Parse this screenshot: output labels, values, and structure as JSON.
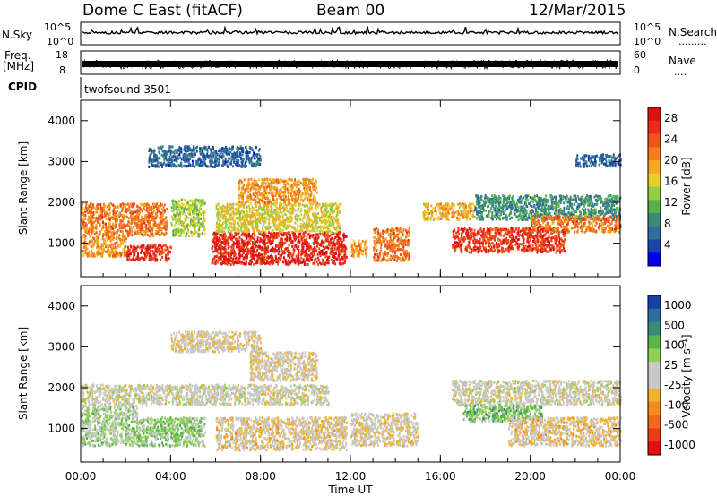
{
  "header": {
    "station": "Dome C East (fitACF)",
    "beam": "Beam 00",
    "date": "12/Mar/2015"
  },
  "strips": {
    "nsky_label": "N.Sky",
    "nsky_ticks": [
      "10^5",
      "10^0"
    ],
    "nsearch_label": "N.Search",
    "nsearch_dots": ".........",
    "nsearch_ticks": [
      "10^5",
      "10^0"
    ],
    "freq_label_line1": "Freq.",
    "freq_label_line2": "[MHz]",
    "freq_ticks": [
      "18",
      "8"
    ],
    "nave_label": "Nave",
    "nave_dots": "....",
    "nave_ticks": [
      "60",
      "0"
    ],
    "cpid_label": "CPID",
    "cpid_text": "twofsound 3501"
  },
  "colors": {
    "power": [
      "#0000ee",
      "#1a46a8",
      "#2e6d9c",
      "#3d8a7a",
      "#59b14c",
      "#96cd45",
      "#e8cf2d",
      "#f5a623",
      "#f47e1b",
      "#ef5519",
      "#e52d18",
      "#dc0f12"
    ],
    "velocity": [
      "#1a3fa8",
      "#2d6ea0",
      "#3a8c78",
      "#58b54a",
      "#8fd054",
      "#c8c8c8",
      "#c8c8c8",
      "#f0b22a",
      "#f58a1f",
      "#f06a1a",
      "#e83d17",
      "#e01010"
    ]
  },
  "chart_data": [
    {
      "type": "heatmap",
      "title": "",
      "ylabel": "Slant Range [km]",
      "xlabel": "",
      "xlim": [
        "00:00",
        "24:00"
      ],
      "ylim": [
        180,
        4500
      ],
      "yticks": [
        "4000",
        "3000",
        "2000",
        "1000"
      ],
      "colorbar_label": "Power [dB]",
      "colorbar_ticks": [
        "28",
        "24",
        "20",
        "16",
        "12",
        "8",
        "4"
      ],
      "colorbar_range": [
        0,
        30
      ],
      "scatter_regions": [
        {
          "t": [
            0.0,
            3.8
          ],
          "r": [
            1200,
            2000
          ],
          "v": 22
        },
        {
          "t": [
            0.0,
            2.0
          ],
          "r": [
            700,
            1200
          ],
          "v": 20
        },
        {
          "t": [
            2.0,
            4.0
          ],
          "r": [
            600,
            1000
          ],
          "v": 26
        },
        {
          "t": [
            4.0,
            5.5
          ],
          "r": [
            1200,
            2100
          ],
          "v": 14
        },
        {
          "t": [
            5.8,
            11.8
          ],
          "r": [
            500,
            1300
          ],
          "v": 27
        },
        {
          "t": [
            6.0,
            11.5
          ],
          "r": [
            1300,
            2000
          ],
          "v": 16
        },
        {
          "t": [
            7.0,
            10.5
          ],
          "r": [
            2000,
            2600
          ],
          "v": 20
        },
        {
          "t": [
            12.0,
            12.7
          ],
          "r": [
            700,
            1100
          ],
          "v": 20
        },
        {
          "t": [
            13.0,
            14.6
          ],
          "r": [
            600,
            1400
          ],
          "v": 22
        },
        {
          "t": [
            15.2,
            17.5
          ],
          "r": [
            1600,
            2000
          ],
          "v": 18
        },
        {
          "t": [
            16.5,
            21.5
          ],
          "r": [
            800,
            1400
          ],
          "v": 26
        },
        {
          "t": [
            17.5,
            24.0
          ],
          "r": [
            1600,
            2200
          ],
          "v": 9
        },
        {
          "t": [
            20.0,
            24.0
          ],
          "r": [
            1300,
            1700
          ],
          "v": 22
        },
        {
          "t": [
            3.0,
            8.0
          ],
          "r": [
            2900,
            3400
          ],
          "v": 6
        },
        {
          "t": [
            22.0,
            24.0
          ],
          "r": [
            2900,
            3200
          ],
          "v": 6
        }
      ]
    },
    {
      "type": "heatmap",
      "title": "",
      "ylabel": "Slant Range [km]",
      "xlabel": "Time UT",
      "xlim": [
        "00:00",
        "24:00"
      ],
      "ylim": [
        180,
        4500
      ],
      "xticks": [
        "00:00",
        "04:00",
        "08:00",
        "12:00",
        "16:00",
        "20:00",
        "00:00"
      ],
      "yticks": [
        "4000",
        "3000",
        "2000",
        "1000"
      ],
      "colorbar_label": "Velocity [m s⁻¹]",
      "colorbar_ticks": [
        "1000",
        "500",
        "100",
        "25",
        "-25",
        "-100",
        "-500",
        "-1000"
      ],
      "colorbar_range": [
        -1000,
        1000
      ],
      "scatter_regions": [
        {
          "t": [
            0.0,
            4.0
          ],
          "r": [
            1600,
            2100
          ],
          "v": 0
        },
        {
          "t": [
            0.0,
            2.5
          ],
          "r": [
            600,
            1600
          ],
          "v": 150
        },
        {
          "t": [
            2.5,
            5.5
          ],
          "r": [
            600,
            1300
          ],
          "v": 250
        },
        {
          "t": [
            4.0,
            11.0
          ],
          "r": [
            1600,
            2100
          ],
          "v": 0
        },
        {
          "t": [
            6.0,
            11.8
          ],
          "r": [
            500,
            1300
          ],
          "v": -120
        },
        {
          "t": [
            12.0,
            15.0
          ],
          "r": [
            600,
            1400
          ],
          "v": -100
        },
        {
          "t": [
            16.5,
            24.0
          ],
          "r": [
            1600,
            2200
          ],
          "v": 0
        },
        {
          "t": [
            17.0,
            20.5
          ],
          "r": [
            1200,
            1600
          ],
          "v": 350
        },
        {
          "t": [
            19.0,
            24.0
          ],
          "r": [
            600,
            1300
          ],
          "v": -150
        },
        {
          "t": [
            7.5,
            10.5
          ],
          "r": [
            2200,
            2900
          ],
          "v": -100
        },
        {
          "t": [
            4.0,
            8.0
          ],
          "r": [
            2900,
            3400
          ],
          "v": -80
        }
      ]
    }
  ]
}
